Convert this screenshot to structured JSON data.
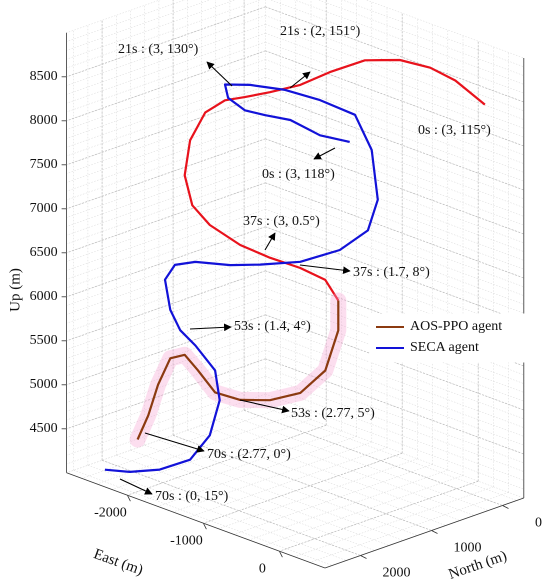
{
  "chart_data": {
    "type": "line3d",
    "x_label": "East (m)",
    "y_label": "North (m)",
    "z_label": "Up (m)",
    "xlim": [
      -2800,
      600
    ],
    "ylim": [
      -300,
      2500
    ],
    "zlim": [
      4000,
      9000
    ],
    "xticks": [
      -2000,
      -1000,
      0
    ],
    "yticks": [
      0,
      1000,
      2000
    ],
    "zticks": [
      4500,
      5000,
      5500,
      6000,
      6500,
      7000,
      7500,
      8000,
      8500
    ],
    "grid": true,
    "legend": "east",
    "series": [
      {
        "color": "#e8121c",
        "x": [
          1490,
          1100,
          770,
          370,
          -90,
          -550,
          -940,
          -1340,
          -1670,
          -1930,
          -2190,
          -2390,
          -2460,
          -2360,
          -2130,
          -1730,
          -1340,
          -940,
          -610,
          -440
        ],
        "y": [
          1200,
          1200,
          1200,
          1200,
          1200,
          1200,
          1200,
          1200,
          1200,
          1200,
          1200,
          1200,
          1200,
          1200,
          1200,
          1200,
          1200,
          1200,
          1200,
          1200
        ],
        "z": [
          9180,
          9330,
          9370,
          9330,
          9180,
          8900,
          8630,
          8420,
          8260,
          8140,
          7920,
          7540,
          7120,
          6810,
          6660,
          6560,
          6540,
          6550,
          6520,
          6340
        ]
      },
      {
        "name": "AOS-PPO agent",
        "color": "#8b3a10",
        "x": [
          -440,
          -440,
          -610,
          -940,
          -1340,
          -1730,
          -2060,
          -2290,
          -2460,
          -2650,
          -2810,
          -2940,
          -3080
        ],
        "y": [
          1200,
          1200,
          1200,
          1200,
          1200,
          1200,
          1200,
          1200,
          1200,
          1200,
          1200,
          1200,
          1200
        ],
        "z": [
          6340,
          6000,
          5490,
          5130,
          4920,
          4800,
          4780,
          4960,
          5080,
          4980,
          4630,
          4240,
          3920
        ]
      },
      {
        "name": "SECA agent",
        "color": "#1212d8",
        "x": [
          -290,
          -680,
          -1070,
          -1400,
          -1670,
          -1890,
          -1930,
          -1600,
          -1140,
          -680,
          -220,
          0,
          80,
          -50,
          -420,
          -940,
          -1470,
          -1860,
          -2320,
          -2590,
          -2720,
          -2650,
          -2520,
          -2320,
          -2060,
          -2000,
          -2130,
          -2390,
          -2790,
          -3180,
          -3510
        ],
        "y": [
          1200,
          1200,
          1200,
          1200,
          1200,
          1200,
          1200,
          1200,
          1200,
          1200,
          1200,
          1200,
          1200,
          1200,
          1200,
          1200,
          1200,
          1200,
          1200,
          1200,
          1200,
          1200,
          1200,
          1200,
          1200,
          1200,
          1200,
          1200,
          1200,
          1200,
          1200
        ],
        "z": [
          8190,
          8140,
          8190,
          8140,
          8110,
          8180,
          8320,
          8420,
          8510,
          8540,
          8520,
          8190,
          7650,
          7260,
          6920,
          6620,
          6420,
          6290,
          6180,
          6060,
          5850,
          5530,
          5340,
          5230,
          5030,
          4710,
          4270,
          3910,
          3670,
          3520,
          3440
        ]
      }
    ],
    "annotations": [
      {
        "text": "21s : (3, 130°)"
      },
      {
        "text": "21s : (2, 151°)"
      },
      {
        "text": "0s : (3, 115°)"
      },
      {
        "text": "0s : (3, 118°)"
      },
      {
        "text": "37s : (3, 0.5°)"
      },
      {
        "text": "37s : (1.7, 8°)"
      },
      {
        "text": "53s : (1.4, 4°)"
      },
      {
        "text": "53s : (2.77, 5°)"
      },
      {
        "text": "70s : (2.77, 0°)"
      },
      {
        "text": "70s : (0, 15°)"
      }
    ]
  }
}
